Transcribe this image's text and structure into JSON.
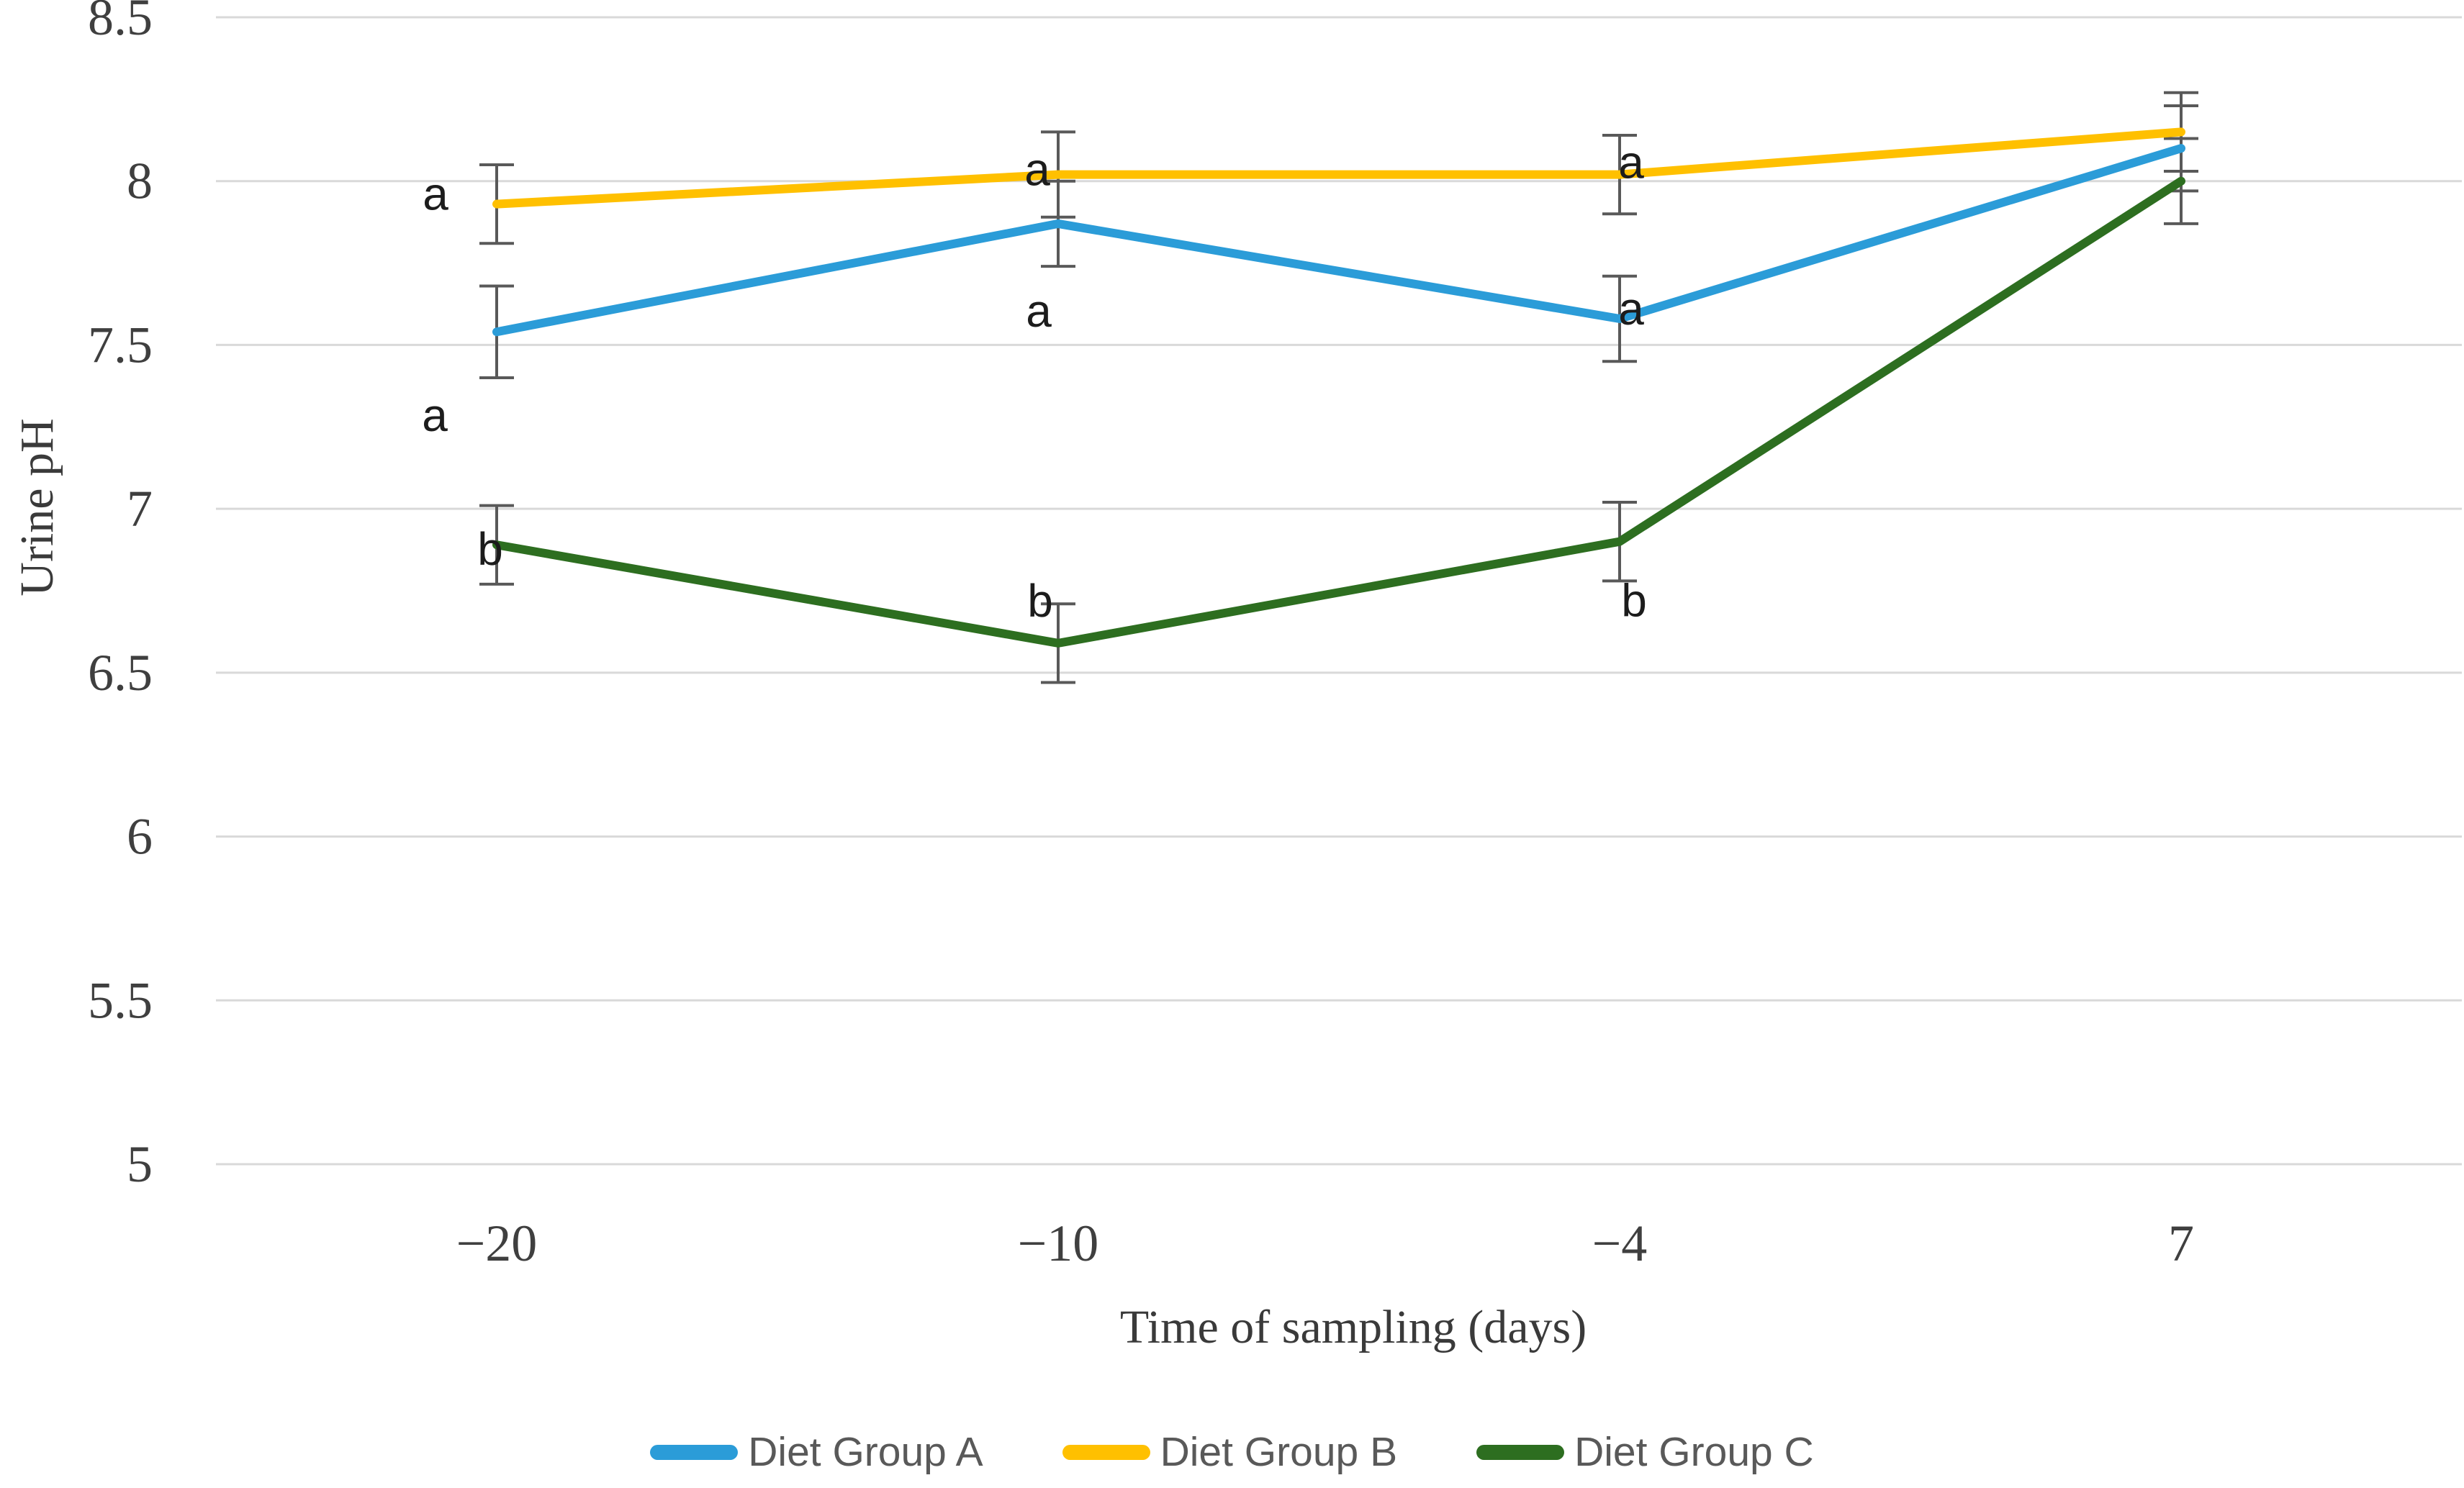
{
  "chart_data": {
    "type": "line",
    "title": "",
    "xlabel": "Time of sampling (days)",
    "ylabel": "Urine pH",
    "categories": [
      -20,
      -10,
      -4,
      7
    ],
    "x_tick_labels": [
      "−20",
      "−10",
      "−4",
      "7"
    ],
    "y_ticks": [
      8.5,
      8.0,
      7.5,
      7.0,
      6.5,
      6.0,
      5.5,
      5.0
    ],
    "y_tick_labels": [
      "8.5",
      "8",
      "7.5",
      "7",
      "6.5",
      "6",
      "5.5",
      "5"
    ],
    "ylim": [
      5.0,
      8.5
    ],
    "grid": "horizontal",
    "grid_color": "#d9d9d9",
    "error_bar_color": "#595959",
    "legend_position": "bottom",
    "series": [
      {
        "name": "Diet Group A",
        "color": "#2b9cd8",
        "values": [
          7.54,
          7.87,
          7.58,
          8.1
        ],
        "errors": [
          0.14,
          0.13,
          0.13,
          0.13
        ],
        "point_letters": [
          {
            "text": "a",
            "dx": -86,
            "dy": 116
          },
          {
            "text": "a",
            "dx": -27,
            "dy": 121
          },
          {
            "text": "a",
            "dx": 16,
            "dy": -14
          },
          null
        ]
      },
      {
        "name": "Diet Group B",
        "color": "#ffc000",
        "values": [
          7.93,
          8.02,
          8.02,
          8.15
        ],
        "errors": [
          0.12,
          0.13,
          0.12,
          0.12
        ],
        "point_letters": [
          {
            "text": "a",
            "dx": -85,
            "dy": -14
          },
          {
            "text": "a",
            "dx": -29,
            "dy": -7
          },
          {
            "text": "a",
            "dx": 16,
            "dy": -17
          },
          null
        ]
      },
      {
        "name": "Diet Group C",
        "color": "#2d6e20",
        "values": [
          6.89,
          6.59,
          6.9,
          8.0
        ],
        "errors": [
          0.12,
          0.12,
          0.12,
          0.13
        ],
        "point_letters": [
          {
            "text": "b",
            "dx": -9,
            "dy": 6
          },
          {
            "text": "b",
            "dx": -25,
            "dy": -59
          },
          {
            "text": "b",
            "dx": 20,
            "dy": 82
          },
          null
        ]
      }
    ]
  }
}
